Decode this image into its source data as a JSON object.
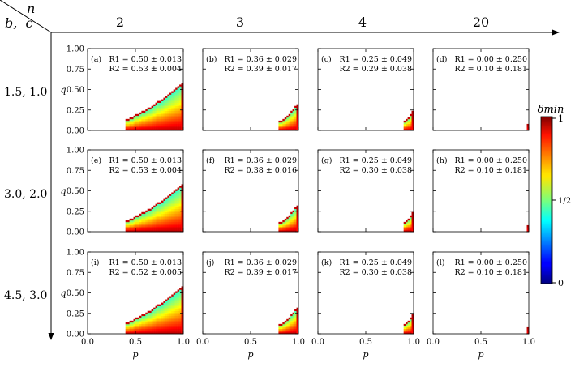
{
  "header": {
    "corner_top": "n",
    "corner_bottom": "b,  c",
    "columns": [
      "2",
      "3",
      "4",
      "20"
    ],
    "rows": [
      "1.5, 1.0",
      "3.0, 2.0",
      "4.5, 3.0"
    ]
  },
  "colorbar": {
    "label": "δmin",
    "ticks": [
      "0",
      "1/2",
      "1⁻"
    ]
  },
  "chart_data": {
    "type": "heatmap",
    "grid": "off",
    "xlabel": "p",
    "ylabel": "q",
    "xlim": [
      0.0,
      1.0
    ],
    "ylim": [
      0.0,
      1.0
    ],
    "x_ticks": [
      "0.0",
      "0.5",
      "1.0"
    ],
    "y_ticks": [
      "0.00",
      "0.25",
      "0.50",
      "0.75",
      "1.00"
    ],
    "colormap": "jet",
    "panels": [
      {
        "label": "(a)",
        "n": 2,
        "bc": "1.5, 1.0",
        "r1": "R1 = 0.50 ± 0.013",
        "r2": "R2 = 0.53 ± 0.004",
        "r1_value": 0.5,
        "r2_value": 0.53,
        "region_exponent": 1.65,
        "min_p": 0.39,
        "max_q": 0.58
      },
      {
        "label": "(b)",
        "n": 3,
        "bc": "1.5, 1.0",
        "r1": "R1 = 0.36 ± 0.029",
        "r2": "R2 = 0.39 ± 0.017",
        "r1_value": 0.36,
        "r2_value": 0.39,
        "region_exponent": 5.0,
        "min_p": 0.8,
        "max_q": 0.34
      },
      {
        "label": "(c)",
        "n": 4,
        "bc": "1.5, 1.0",
        "r1": "R1 = 0.25 ± 0.049",
        "r2": "R2 = 0.29 ± 0.038",
        "r1_value": 0.25,
        "r2_value": 0.29,
        "region_exponent": 9.0,
        "min_p": 0.9,
        "max_q": 0.27
      },
      {
        "label": "(d)",
        "n": 20,
        "bc": "1.5, 1.0",
        "r1": "R1 = 0.00 ± 0.250",
        "r2": "R2 = 0.10 ± 0.181",
        "r1_value": 0.0,
        "r2_value": 0.1,
        "region_exponent": 20.0,
        "min_p": 0.97,
        "max_q": 0.11
      },
      {
        "label": "(e)",
        "n": 2,
        "bc": "3.0, 2.0",
        "r1": "R1 = 0.50 ± 0.013",
        "r2": "R2 = 0.53 ± 0.004",
        "r1_value": 0.5,
        "r2_value": 0.53,
        "region_exponent": 1.65,
        "min_p": 0.39,
        "max_q": 0.58
      },
      {
        "label": "(f)",
        "n": 3,
        "bc": "3.0, 2.0",
        "r1": "R1 = 0.36 ± 0.029",
        "r2": "R2 = 0.38 ± 0.016",
        "r1_value": 0.36,
        "r2_value": 0.38,
        "region_exponent": 5.0,
        "min_p": 0.8,
        "max_q": 0.34
      },
      {
        "label": "(g)",
        "n": 4,
        "bc": "3.0, 2.0",
        "r1": "R1 = 0.25 ± 0.049",
        "r2": "R2 = 0.30 ± 0.038",
        "r1_value": 0.25,
        "r2_value": 0.3,
        "region_exponent": 9.0,
        "min_p": 0.9,
        "max_q": 0.27
      },
      {
        "label": "(h)",
        "n": 20,
        "bc": "3.0, 2.0",
        "r1": "R1 = 0.00 ± 0.250",
        "r2": "R2 = 0.10 ± 0.181",
        "r1_value": 0.0,
        "r2_value": 0.1,
        "region_exponent": 20.0,
        "min_p": 0.97,
        "max_q": 0.11
      },
      {
        "label": "(i)",
        "n": 2,
        "bc": "4.5, 3.0",
        "r1": "R1 = 0.50 ± 0.013",
        "r2": "R2 = 0.52 ± 0.005",
        "r1_value": 0.5,
        "r2_value": 0.52,
        "region_exponent": 1.65,
        "min_p": 0.39,
        "max_q": 0.58
      },
      {
        "label": "(j)",
        "n": 3,
        "bc": "4.5, 3.0",
        "r1": "R1 = 0.36 ± 0.029",
        "r2": "R2 = 0.39 ± 0.017",
        "r1_value": 0.36,
        "r2_value": 0.39,
        "region_exponent": 5.0,
        "min_p": 0.8,
        "max_q": 0.34
      },
      {
        "label": "(k)",
        "n": 4,
        "bc": "4.5, 3.0",
        "r1": "R1 = 0.25 ± 0.049",
        "r2": "R2 = 0.30 ± 0.038",
        "r1_value": 0.25,
        "r2_value": 0.3,
        "region_exponent": 9.0,
        "min_p": 0.9,
        "max_q": 0.27
      },
      {
        "label": "(l)",
        "n": 20,
        "bc": "4.5, 3.0",
        "r1": "R1 = 0.00 ± 0.250",
        "r2": "R2 = 0.10 ± 0.181",
        "r1_value": 0.0,
        "r2_value": 0.1,
        "region_exponent": 20.0,
        "min_p": 0.97,
        "max_q": 0.11
      }
    ]
  }
}
